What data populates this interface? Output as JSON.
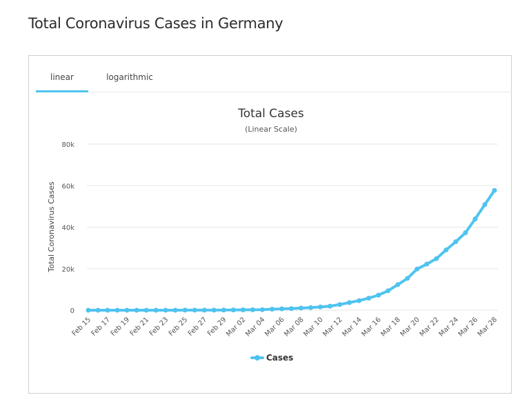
{
  "page": {
    "title": "Total Coronavirus Cases in Germany"
  },
  "tabs": [
    {
      "label": "linear",
      "active": true
    },
    {
      "label": "logarithmic",
      "active": false
    }
  ],
  "colors": {
    "series": "#4fc3ef",
    "grid": "#e6e6e6",
    "tab_active": "#4fc3ef"
  },
  "chart_data": {
    "type": "line",
    "title": "Total Cases",
    "subtitle": "(Linear Scale)",
    "xlabel": "",
    "ylabel": "Total Coronavirus Cases",
    "ylim": [
      0,
      80000
    ],
    "yticks": [
      0,
      20000,
      40000,
      60000,
      80000
    ],
    "ytick_labels": [
      "0",
      "20k",
      "40k",
      "60k",
      "80k"
    ],
    "xtick_labels": [
      "Feb 15",
      "Feb 17",
      "Feb 19",
      "Feb 21",
      "Feb 23",
      "Feb 25",
      "Feb 27",
      "Feb 29",
      "Mar 02",
      "Mar 04",
      "Mar 06",
      "Mar 08",
      "Mar 10",
      "Mar 12",
      "Mar 14",
      "Mar 16",
      "Mar 18",
      "Mar 20",
      "Mar 22",
      "Mar 24",
      "Mar 26",
      "Mar 28"
    ],
    "legend": {
      "position": "bottom-center"
    },
    "grid": true,
    "x": [
      "Feb 15",
      "Feb 16",
      "Feb 17",
      "Feb 18",
      "Feb 19",
      "Feb 20",
      "Feb 21",
      "Feb 22",
      "Feb 23",
      "Feb 24",
      "Feb 25",
      "Feb 26",
      "Feb 27",
      "Feb 28",
      "Feb 29",
      "Mar 01",
      "Mar 02",
      "Mar 03",
      "Mar 04",
      "Mar 05",
      "Mar 06",
      "Mar 07",
      "Mar 08",
      "Mar 09",
      "Mar 10",
      "Mar 11",
      "Mar 12",
      "Mar 13",
      "Mar 14",
      "Mar 15",
      "Mar 16",
      "Mar 17",
      "Mar 18",
      "Mar 19",
      "Mar 20",
      "Mar 21",
      "Mar 22",
      "Mar 23",
      "Mar 24",
      "Mar 25",
      "Mar 26",
      "Mar 27",
      "Mar 28"
    ],
    "series": [
      {
        "name": "Cases",
        "values": [
          16,
          16,
          16,
          16,
          16,
          16,
          16,
          16,
          16,
          16,
          18,
          27,
          46,
          48,
          79,
          130,
          159,
          196,
          262,
          482,
          670,
          799,
          1040,
          1224,
          1565,
          1966,
          2745,
          3675,
          4599,
          5813,
          7272,
          9367,
          12327,
          15320,
          19848,
          22213,
          24873,
          29056,
          32986,
          37323,
          43938,
          50871,
          57695
        ]
      }
    ]
  }
}
